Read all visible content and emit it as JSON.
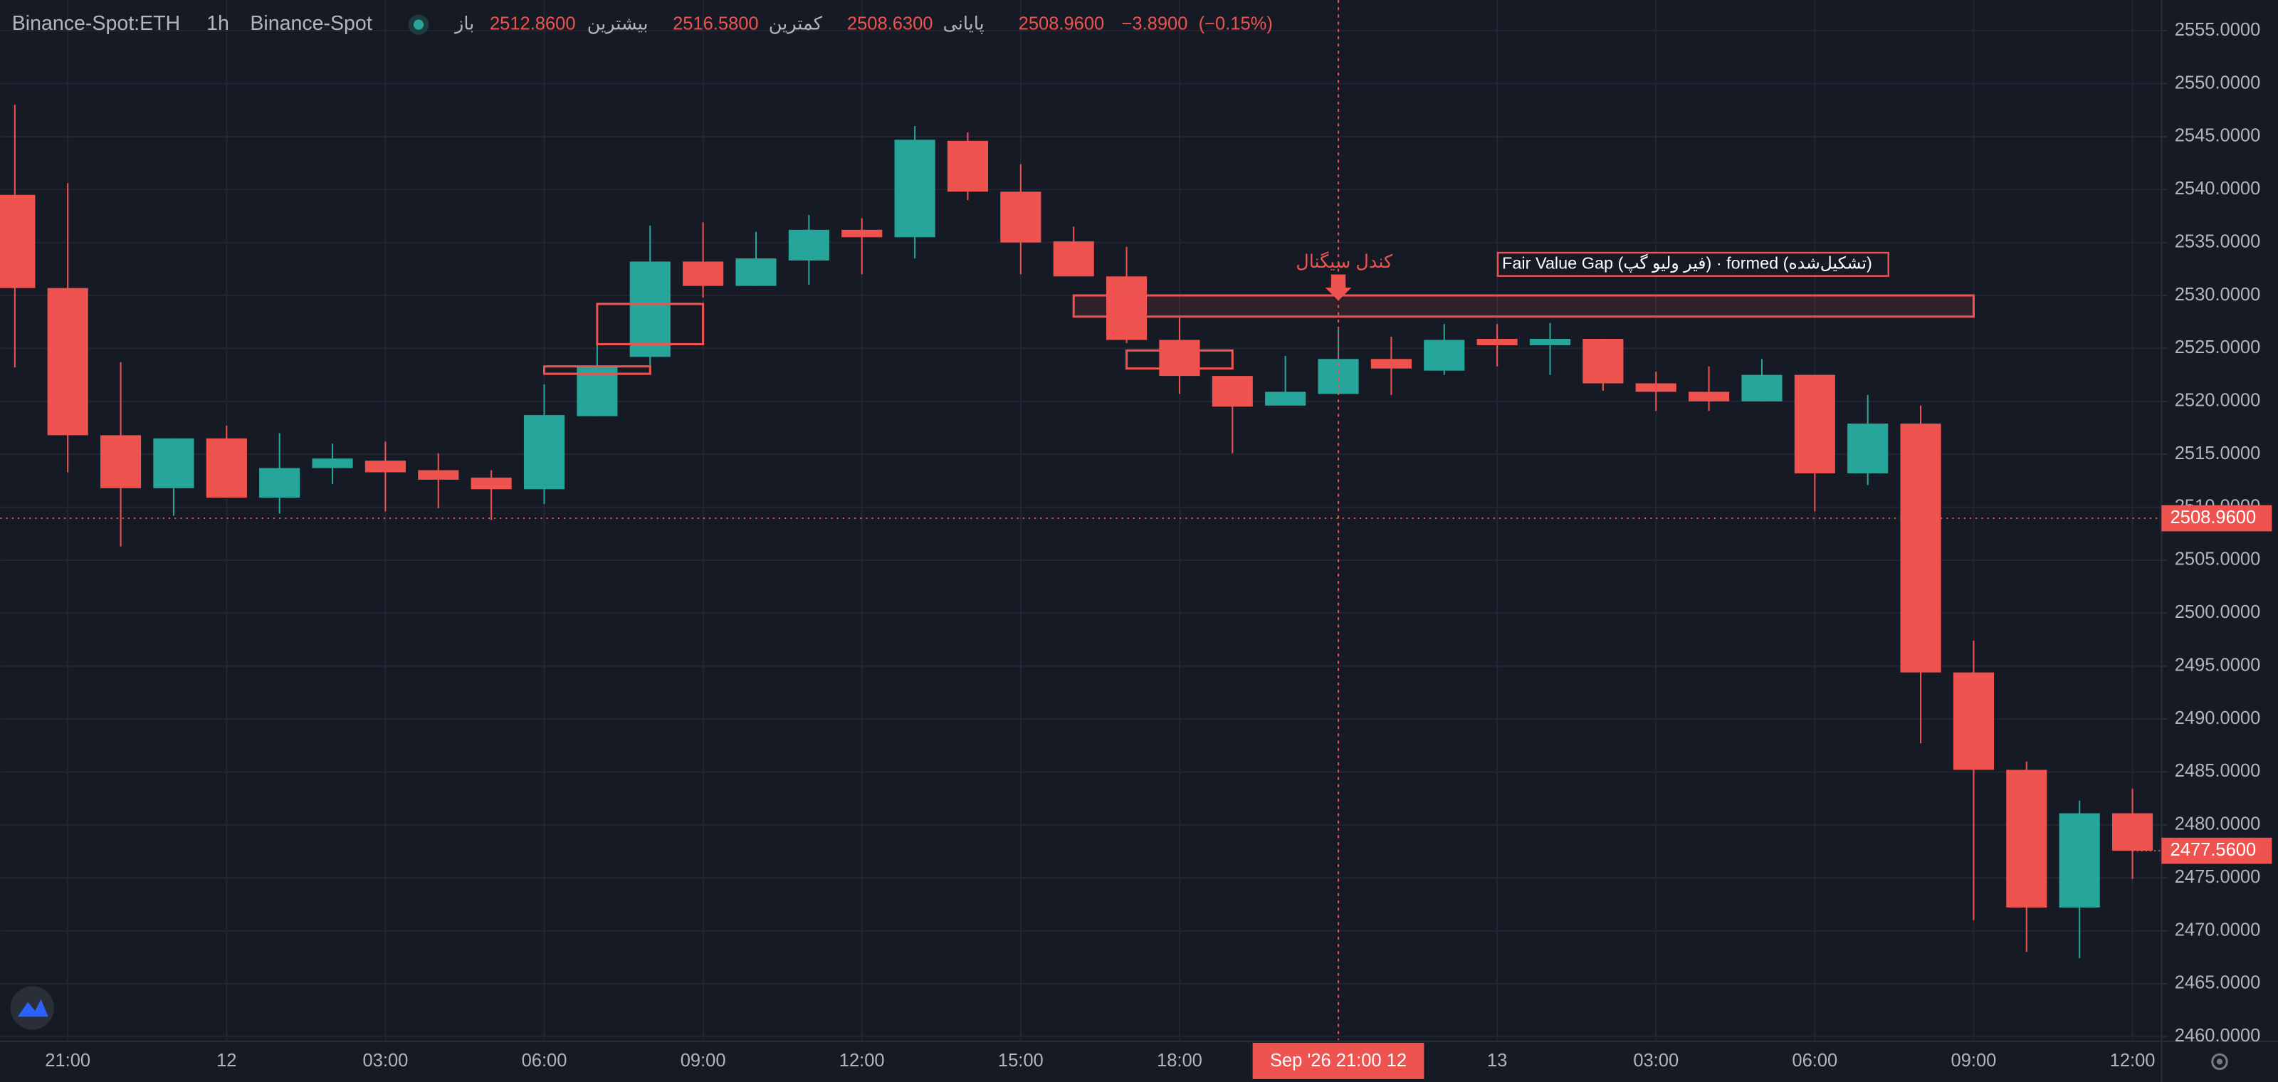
{
  "chart_data": {
    "type": "candlestick",
    "symbol": "Binance-Spot:ETH",
    "interval": "1h",
    "exchange": "Binance-Spot",
    "header": {
      "open_name": "باز",
      "open": {
        "value": 2512.86,
        "label": "2512.8600"
      },
      "high_name": "بیشترین",
      "high": {
        "value": 2516.58,
        "label": "2516.5800"
      },
      "low_name": "کمترین",
      "low": {
        "value": 2508.63,
        "label": "2508.6300"
      },
      "close_name": "پایانی",
      "close": {
        "value": 2508.96,
        "label": "2508.9600"
      },
      "change": {
        "value": -3.89,
        "label": "−3.8900"
      },
      "change_pct": {
        "value": -0.15,
        "label": "(−0.15%)"
      }
    },
    "categories": [
      null,
      "21:00",
      null,
      null,
      "12",
      null,
      null,
      "03:00",
      null,
      null,
      "06:00",
      null,
      null,
      "09:00",
      null,
      null,
      "12:00",
      null,
      null,
      "15:00",
      null,
      null,
      "18:00",
      null,
      null,
      null,
      null,
      null,
      "13",
      null,
      null,
      "03:00",
      null,
      null,
      "06:00",
      null,
      null,
      "09:00",
      null,
      null,
      "12:00"
    ],
    "open": [
      2539.5,
      2530.7,
      2516.8,
      2511.8,
      2516.5,
      2510.9,
      2513.7,
      2514.4,
      2513.5,
      2512.8,
      2511.7,
      2518.6,
      2524.2,
      2533.2,
      2530.9,
      2533.3,
      2536.2,
      2535.5,
      2544.6,
      2539.8,
      2535.1,
      2531.8,
      2525.8,
      2522.4,
      2519.6,
      2520.7,
      2524.0,
      2522.9,
      2525.9,
      2525.3,
      2525.9,
      2521.7,
      2520.9,
      2520.0,
      2522.5,
      2513.2,
      2517.9,
      2494.4,
      2485.2,
      2472.2,
      2481.1
    ],
    "high": [
      2548.0,
      2540.6,
      2523.7,
      2516.5,
      2517.7,
      2517.0,
      2516.0,
      2516.2,
      2515.1,
      2513.5,
      2521.6,
      2526.4,
      2536.6,
      2536.9,
      2536.0,
      2537.6,
      2537.3,
      2546.0,
      2545.4,
      2542.4,
      2536.5,
      2534.6,
      2527.9,
      2522.4,
      2524.3,
      2527.0,
      2526.1,
      2527.3,
      2527.3,
      2527.4,
      2525.9,
      2522.8,
      2523.3,
      2524.0,
      2522.5,
      2520.6,
      2519.6,
      2497.4,
      2486.0,
      2482.3,
      2483.4
    ],
    "low": [
      2523.2,
      2513.3,
      2506.3,
      2509.2,
      2510.9,
      2509.4,
      2512.2,
      2509.6,
      2509.9,
      2508.8,
      2510.3,
      2518.6,
      2522.5,
      2529.8,
      2530.9,
      2531.0,
      2532.0,
      2533.5,
      2539.0,
      2532.0,
      2531.8,
      2525.5,
      2520.7,
      2515.1,
      2519.6,
      2520.7,
      2520.6,
      2522.5,
      2523.3,
      2522.5,
      2521.0,
      2519.1,
      2519.1,
      2520.0,
      2509.6,
      2512.1,
      2487.7,
      2471.0,
      2468.0,
      2467.4,
      2474.9
    ],
    "close": [
      2530.7,
      2516.8,
      2511.8,
      2516.5,
      2510.9,
      2513.7,
      2514.6,
      2513.3,
      2512.6,
      2511.7,
      2518.7,
      2523.3,
      2533.2,
      2530.9,
      2533.5,
      2536.2,
      2535.5,
      2544.7,
      2539.8,
      2535.0,
      2531.8,
      2525.8,
      2522.4,
      2519.5,
      2520.9,
      2524.0,
      2523.1,
      2525.8,
      2525.3,
      2525.9,
      2521.7,
      2520.9,
      2520.0,
      2522.5,
      2513.2,
      2517.9,
      2494.4,
      2485.2,
      2472.2,
      2481.1,
      2477.56
    ],
    "up_color": "#26a69a",
    "down_color": "#ef5350",
    "ylim": [
      2459.7,
      2557.9
    ],
    "yticks": [
      {
        "value": 2460,
        "label": "2460.0000"
      },
      {
        "value": 2465,
        "label": "2465.0000"
      },
      {
        "value": 2470,
        "label": "2470.0000"
      },
      {
        "value": 2475,
        "label": "2475.0000"
      },
      {
        "value": 2480,
        "label": "2480.0000"
      },
      {
        "value": 2485,
        "label": "2485.0000"
      },
      {
        "value": 2490,
        "label": "2490.0000"
      },
      {
        "value": 2495,
        "label": "2495.0000"
      },
      {
        "value": 2500,
        "label": "2500.0000"
      },
      {
        "value": 2505,
        "label": "2505.0000"
      },
      {
        "value": 2510,
        "label": "2510.0000"
      },
      {
        "value": 2515,
        "label": "2515.0000"
      },
      {
        "value": 2520,
        "label": "2520.0000"
      },
      {
        "value": 2525,
        "label": "2525.0000"
      },
      {
        "value": 2530,
        "label": "2530.0000"
      },
      {
        "value": 2535,
        "label": "2535.0000"
      },
      {
        "value": 2540,
        "label": "2540.0000"
      },
      {
        "value": 2545,
        "label": "2545.0000"
      },
      {
        "value": 2550,
        "label": "2550.0000"
      },
      {
        "value": 2555,
        "label": "2555.0000"
      }
    ],
    "grid": true,
    "last_price": {
      "value": 2477.56,
      "label": "2477.5600"
    },
    "crosshair": {
      "time_label": "Sep '26  21:00 12",
      "price": {
        "value": 2508.96,
        "label": "2508.9600"
      }
    },
    "signal_label": "کندل سیگنال",
    "fvg_label": "Fair Value Gap (فیر ولیو گپ) · formed (تشکیل‌شده)",
    "zones": [
      {
        "low": 2528.0,
        "high": 2530.0
      },
      {
        "low": 2525.4,
        "high": 2529.2
      },
      {
        "low": 2522.6,
        "high": 2523.3
      },
      {
        "low": 2523.1,
        "high": 2524.8
      }
    ]
  }
}
